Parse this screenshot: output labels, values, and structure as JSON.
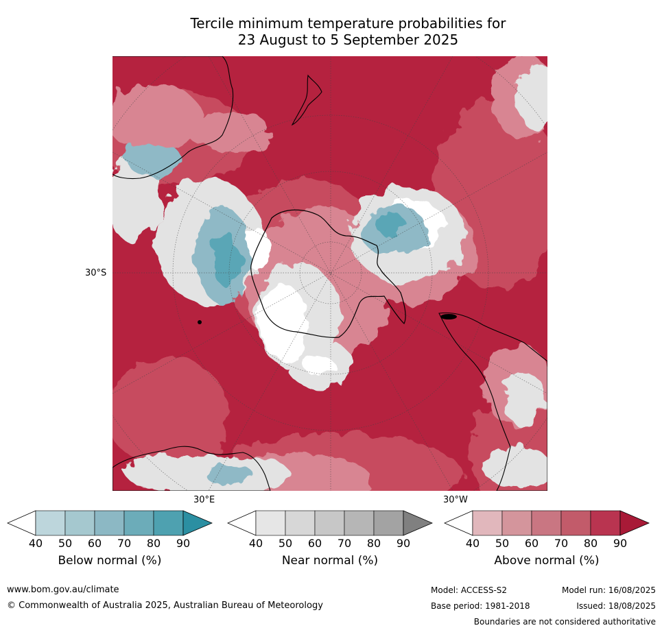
{
  "title_line1": "Tercile minimum temperature probabilities for",
  "title_line2": "23 August to 5 September 2025",
  "map": {
    "lat_label": "30°S",
    "lon_labels": {
      "east": "30°E",
      "west": "30°W"
    },
    "colors": {
      "ocean_warm_dark": "#b5223f",
      "ocean_warm": "#c74c5e",
      "ocean_warm_light": "#d88592",
      "near_normal": "#e3e3e3",
      "cool": "#8fb9c6",
      "cool_dark": "#3a9aaa",
      "land_outline": "#000000"
    }
  },
  "colorbars": [
    {
      "id": "below",
      "label": "Below normal (%)",
      "ticks": [
        "40",
        "50",
        "60",
        "70",
        "80",
        "90"
      ],
      "colors": [
        "#ffffff",
        "#bdd6dc",
        "#a5c8cf",
        "#8cb8c4",
        "#6cacb9",
        "#4ea1b0",
        "#2b8fa2"
      ]
    },
    {
      "id": "near",
      "label": "Near normal (%)",
      "ticks": [
        "40",
        "50",
        "60",
        "70",
        "80",
        "90"
      ],
      "colors": [
        "#ffffff",
        "#e6e6e6",
        "#d7d7d7",
        "#c7c7c7",
        "#b6b6b6",
        "#a3a3a3",
        "#808080"
      ]
    },
    {
      "id": "above",
      "label": "Above normal (%)",
      "ticks": [
        "40",
        "50",
        "60",
        "70",
        "80",
        "90"
      ],
      "colors": [
        "#ffffff",
        "#e1b7bc",
        "#d4959c",
        "#c97682",
        "#c25b6a",
        "#b93450",
        "#a81a37"
      ]
    }
  ],
  "footer": {
    "website": "www.bom.gov.au/climate",
    "copyright": "© Commonwealth of Australia 2025, Australian Bureau of Meteorology",
    "model": "Model: ACCESS-S2",
    "base_period": "Base period: 1981-2018",
    "model_run": "Model run: 16/08/2025",
    "issued": "Issued: 18/08/2025",
    "disclaimer": "Boundaries are not considered authoritative"
  }
}
